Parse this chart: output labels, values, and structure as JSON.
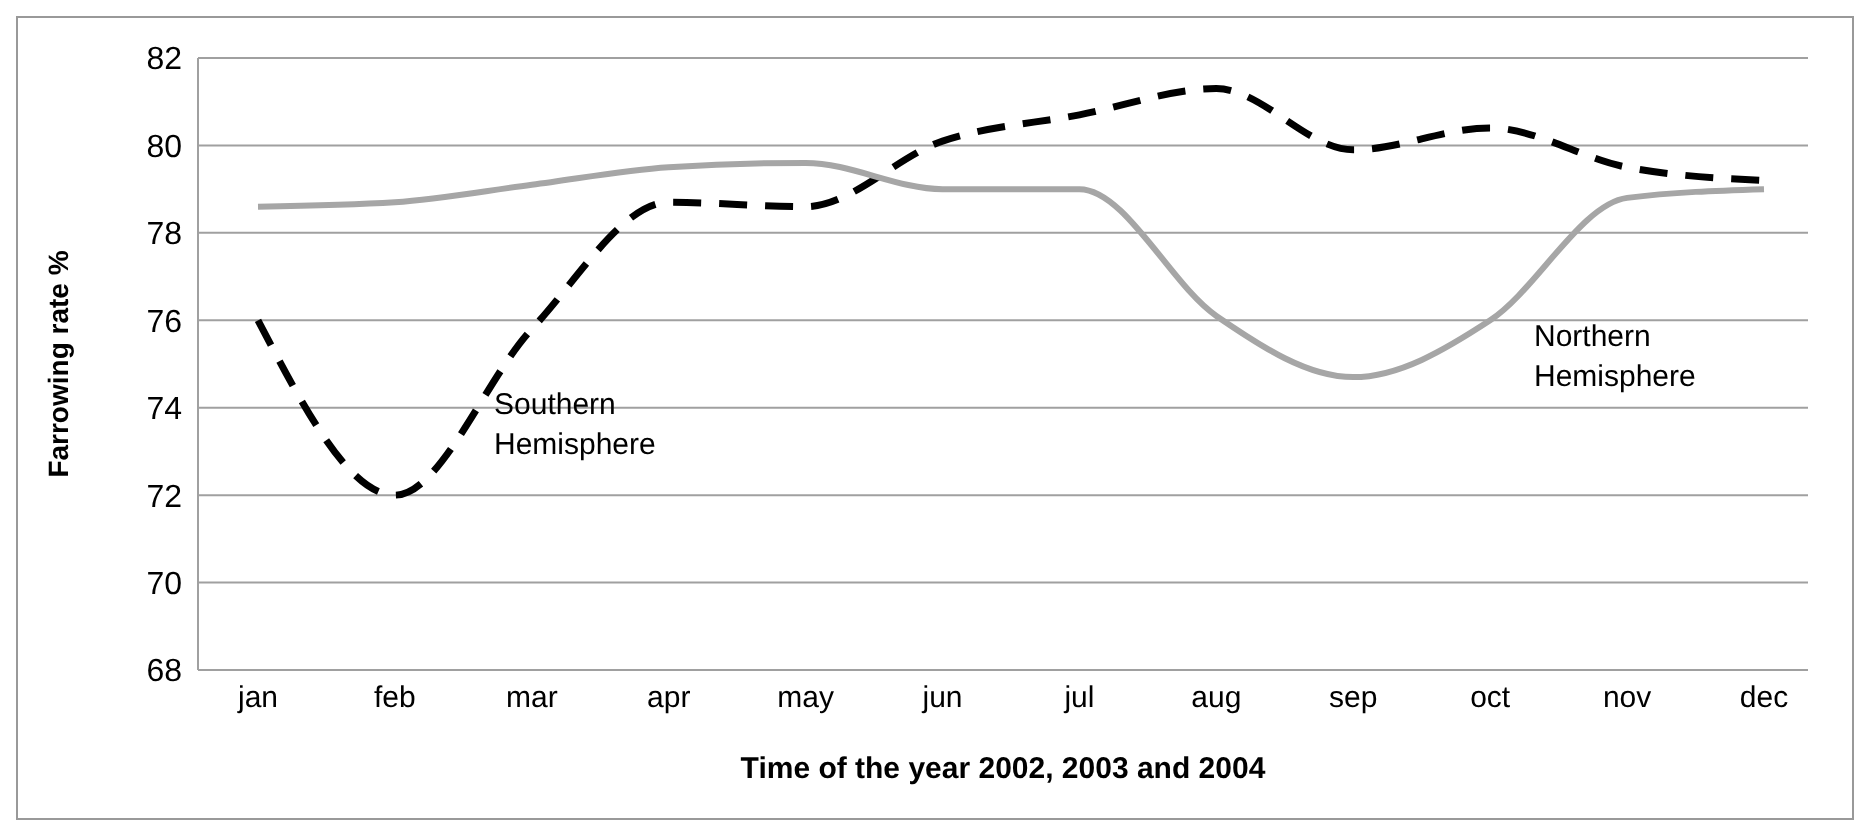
{
  "chart_data": {
    "type": "line",
    "xlabel": "Time of the year 2002, 2003 and 2004",
    "ylabel": "Farrowing rate %",
    "categories": [
      "jan",
      "feb",
      "mar",
      "apr",
      "may",
      "jun",
      "jul",
      "aug",
      "sep",
      "oct",
      "nov",
      "dec"
    ],
    "series": [
      {
        "name": "Southern Hemisphere",
        "color": "#000000",
        "line_style": "dashed",
        "values": [
          76.0,
          72.0,
          75.8,
          78.7,
          78.6,
          80.1,
          80.7,
          81.3,
          79.9,
          80.4,
          79.5,
          79.2
        ]
      },
      {
        "name": "Northern Hemisphere",
        "color": "#a6a6a6",
        "line_style": "solid",
        "values": [
          78.6,
          78.7,
          79.1,
          79.5,
          79.6,
          79.0,
          79.0,
          76.1,
          74.7,
          76.0,
          78.8,
          79.0
        ]
      }
    ],
    "ylim": [
      68,
      82
    ],
    "yticks": [
      68,
      70,
      72,
      74,
      76,
      78,
      80,
      82
    ],
    "grid": "y",
    "marker": "none"
  }
}
